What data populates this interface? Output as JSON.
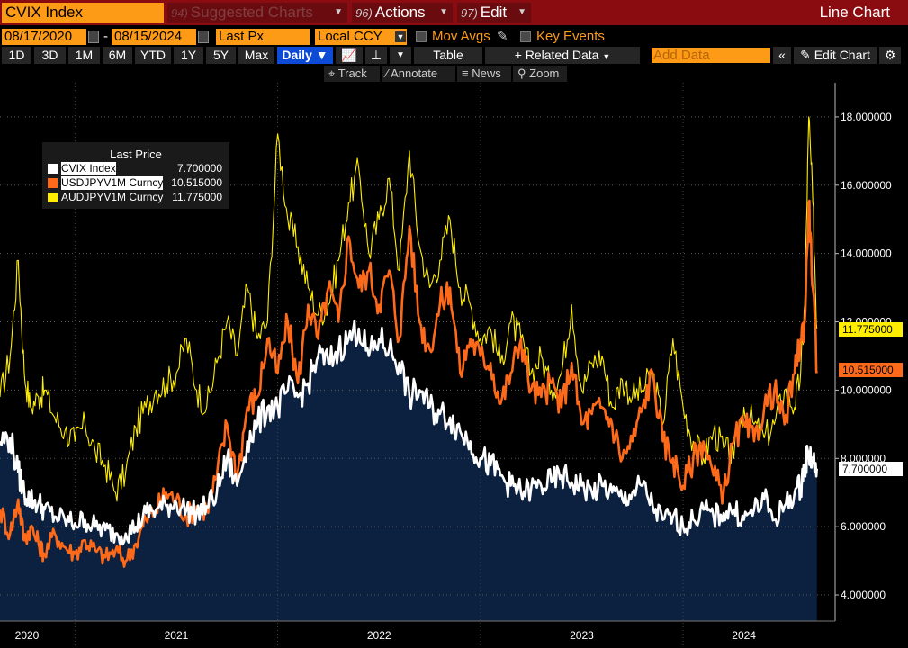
{
  "toolbar": {
    "security": "CVIX Index",
    "suggested": {
      "num": "94)",
      "label": "Suggested Charts"
    },
    "actions": {
      "num": "96)",
      "label": "Actions"
    },
    "edit": {
      "num": "97)",
      "label": "Edit"
    },
    "chart_type": "Line Chart"
  },
  "controls": {
    "start_date": "08/17/2020",
    "end_date": "08/15/2024",
    "date_sep": "-",
    "field": "Last Px",
    "currency": "Local CCY",
    "mov_avgs": "Mov Avgs",
    "key_events": "Key Events",
    "periods": [
      "1D",
      "3D",
      "1M",
      "6M",
      "YTD",
      "1Y",
      "5Y",
      "Max"
    ],
    "frequency": "Daily ▼",
    "table": "Table",
    "related_data": "+ Related Data",
    "add_data_placeholder": "Add Data",
    "edit_chart": "Edit Chart",
    "tools": [
      "Track",
      "Annotate",
      "News",
      "Zoom"
    ]
  },
  "legend": {
    "title": "Last Price",
    "entries": [
      {
        "name": "CVIX Index",
        "value": "7.700000",
        "color": "#ffffff"
      },
      {
        "name": "USDJPYV1M Curncy",
        "value": "10.515000",
        "color": "#ff6a1a"
      },
      {
        "name": "AUDJPYV1M Curncy",
        "value": "11.775000",
        "color": "#ffee00"
      }
    ]
  },
  "last_tags": [
    "11.775000",
    "10.515000",
    "7.700000"
  ],
  "chart_data": {
    "type": "line",
    "y_ticks": [
      "4.000000",
      "6.000000",
      "8.000000",
      "10.000000",
      "12.000000",
      "14.000000",
      "16.000000",
      "18.000000"
    ],
    "ylim": [
      3.5,
      19
    ],
    "x_labels": [
      "2020",
      "2021",
      "2022",
      "2023",
      "2024"
    ],
    "x_label_pos": [
      2020.6,
      2021.5,
      2022.5,
      2023.5,
      2024.3
    ],
    "xlim": [
      2020.63,
      2024.75
    ],
    "year_boundaries": [
      2021.0,
      2022.0,
      2023.0,
      2024.0
    ],
    "grid": true,
    "series": [
      {
        "name": "AUDJPYV1M Curncy",
        "color": "#ffee00",
        "fill": false,
        "x": [
          2020.63,
          2020.68,
          2020.72,
          2020.75,
          2020.78,
          2020.82,
          2020.85,
          2020.9,
          2020.95,
          2021.0,
          2021.05,
          2021.1,
          2021.15,
          2021.2,
          2021.25,
          2021.3,
          2021.35,
          2021.4,
          2021.45,
          2021.5,
          2021.55,
          2021.6,
          2021.65,
          2021.7,
          2021.75,
          2021.8,
          2021.85,
          2021.9,
          2021.95,
          2022.0,
          2022.05,
          2022.1,
          2022.15,
          2022.2,
          2022.25,
          2022.3,
          2022.35,
          2022.4,
          2022.45,
          2022.5,
          2022.55,
          2022.6,
          2022.65,
          2022.7,
          2022.75,
          2022.8,
          2022.85,
          2022.9,
          2022.95,
          2023.0,
          2023.05,
          2023.1,
          2023.15,
          2023.2,
          2023.25,
          2023.3,
          2023.35,
          2023.4,
          2023.45,
          2023.5,
          2023.55,
          2023.6,
          2023.65,
          2023.7,
          2023.75,
          2023.8,
          2023.85,
          2023.9,
          2023.95,
          2024.0,
          2024.05,
          2024.1,
          2024.15,
          2024.2,
          2024.25,
          2024.3,
          2024.35,
          2024.4,
          2024.45,
          2024.5,
          2024.55,
          2024.58,
          2024.6,
          2024.62,
          2024.64,
          2024.66
        ],
        "y": [
          9.8,
          11.0,
          13.8,
          10.5,
          9.5,
          9.8,
          10.0,
          9.2,
          8.8,
          8.5,
          9.0,
          8.2,
          7.8,
          7.0,
          7.6,
          8.9,
          9.5,
          10.0,
          10.2,
          10.5,
          11.5,
          10.0,
          9.5,
          10.8,
          12.0,
          11.0,
          13.0,
          11.5,
          12.0,
          17.5,
          15.0,
          14.2,
          13.0,
          12.2,
          12.5,
          13.8,
          15.5,
          16.5,
          14.0,
          15.0,
          16.2,
          13.5,
          17.0,
          14.2,
          13.0,
          13.8,
          15.0,
          13.0,
          12.5,
          11.5,
          11.8,
          10.8,
          12.0,
          11.5,
          10.5,
          11.0,
          10.0,
          10.5,
          12.5,
          10.0,
          10.8,
          11.0,
          9.5,
          10.3,
          9.8,
          10.0,
          10.5,
          9.0,
          11.5,
          9.5,
          8.5,
          8.0,
          8.8,
          8.3,
          8.0,
          9.5,
          9.0,
          8.6,
          9.0,
          10.0,
          9.5,
          10.5,
          12.5,
          18.0,
          15.5,
          11.8
        ]
      },
      {
        "name": "USDJPYV1M Curncy",
        "color": "#ff6a1a",
        "fill": false,
        "x": [
          2020.63,
          2020.68,
          2020.72,
          2020.75,
          2020.78,
          2020.82,
          2020.85,
          2020.9,
          2020.95,
          2021.0,
          2021.05,
          2021.1,
          2021.15,
          2021.2,
          2021.25,
          2021.3,
          2021.35,
          2021.4,
          2021.45,
          2021.5,
          2021.55,
          2021.6,
          2021.65,
          2021.7,
          2021.75,
          2021.8,
          2021.85,
          2021.9,
          2021.95,
          2022.0,
          2022.05,
          2022.1,
          2022.15,
          2022.2,
          2022.25,
          2022.3,
          2022.35,
          2022.4,
          2022.45,
          2022.5,
          2022.55,
          2022.6,
          2022.65,
          2022.7,
          2022.75,
          2022.8,
          2022.85,
          2022.9,
          2022.95,
          2023.0,
          2023.05,
          2023.1,
          2023.15,
          2023.2,
          2023.25,
          2023.3,
          2023.35,
          2023.4,
          2023.45,
          2023.5,
          2023.55,
          2023.6,
          2023.65,
          2023.7,
          2023.75,
          2023.8,
          2023.85,
          2023.9,
          2023.95,
          2024.0,
          2024.05,
          2024.1,
          2024.15,
          2024.2,
          2024.25,
          2024.3,
          2024.35,
          2024.4,
          2024.45,
          2024.5,
          2024.55,
          2024.58,
          2024.6,
          2024.62,
          2024.64,
          2024.66
        ],
        "y": [
          6.5,
          5.8,
          6.8,
          5.6,
          6.0,
          5.5,
          5.2,
          5.8,
          5.4,
          5.2,
          5.6,
          5.3,
          5.1,
          5.3,
          5.0,
          5.5,
          6.2,
          6.5,
          7.0,
          6.8,
          6.3,
          6.6,
          6.5,
          7.5,
          9.0,
          7.5,
          9.5,
          9.8,
          11.5,
          10.5,
          12.0,
          10.2,
          12.5,
          11.5,
          13.0,
          12.0,
          14.5,
          13.0,
          13.5,
          12.5,
          13.5,
          11.5,
          14.8,
          12.0,
          11.2,
          12.5,
          13.0,
          10.5,
          11.5,
          11.0,
          10.8,
          9.6,
          10.5,
          11.5,
          10.0,
          9.8,
          10.2,
          9.5,
          10.8,
          9.0,
          9.3,
          9.5,
          9.0,
          8.0,
          8.5,
          9.5,
          10.5,
          8.5,
          8.0,
          7.2,
          8.0,
          8.5,
          7.5,
          7.0,
          8.5,
          9.0,
          8.5,
          9.5,
          10.0,
          9.0,
          10.5,
          11.5,
          12.0,
          15.5,
          13.0,
          10.5
        ]
      },
      {
        "name": "CVIX Index",
        "color": "#ffffff",
        "fill": true,
        "fill_color": "#0c213f",
        "x": [
          2020.63,
          2020.68,
          2020.72,
          2020.75,
          2020.78,
          2020.82,
          2020.85,
          2020.9,
          2020.95,
          2021.0,
          2021.05,
          2021.1,
          2021.15,
          2021.2,
          2021.25,
          2021.3,
          2021.35,
          2021.4,
          2021.45,
          2021.5,
          2021.55,
          2021.6,
          2021.65,
          2021.7,
          2021.75,
          2021.8,
          2021.85,
          2021.9,
          2021.95,
          2022.0,
          2022.05,
          2022.1,
          2022.15,
          2022.2,
          2022.25,
          2022.3,
          2022.35,
          2022.4,
          2022.45,
          2022.5,
          2022.55,
          2022.6,
          2022.65,
          2022.7,
          2022.75,
          2022.8,
          2022.85,
          2022.9,
          2022.95,
          2023.0,
          2023.05,
          2023.1,
          2023.15,
          2023.2,
          2023.25,
          2023.3,
          2023.35,
          2023.4,
          2023.45,
          2023.5,
          2023.55,
          2023.6,
          2023.65,
          2023.7,
          2023.75,
          2023.8,
          2023.85,
          2023.9,
          2023.95,
          2024.0,
          2024.05,
          2024.1,
          2024.15,
          2024.2,
          2024.25,
          2024.3,
          2024.35,
          2024.4,
          2024.45,
          2024.5,
          2024.55,
          2024.58,
          2024.6,
          2024.62,
          2024.64,
          2024.66
        ],
        "y": [
          8.5,
          8.6,
          7.6,
          7.0,
          6.8,
          6.7,
          6.5,
          6.3,
          6.2,
          6.1,
          6.2,
          6.0,
          5.9,
          5.8,
          5.8,
          6.0,
          6.4,
          6.5,
          6.6,
          6.7,
          6.5,
          6.4,
          6.6,
          7.0,
          8.0,
          7.2,
          8.5,
          9.0,
          9.5,
          9.5,
          10.0,
          9.8,
          10.2,
          11.0,
          10.8,
          11.2,
          11.5,
          11.8,
          11.0,
          11.5,
          11.2,
          10.8,
          9.8,
          10.0,
          9.5,
          9.3,
          9.2,
          8.8,
          8.5,
          8.0,
          7.8,
          7.5,
          7.2,
          7.0,
          7.1,
          7.2,
          7.3,
          7.5,
          7.3,
          7.2,
          7.0,
          7.2,
          7.0,
          6.8,
          7.0,
          7.2,
          6.6,
          6.2,
          6.3,
          6.0,
          6.2,
          6.5,
          6.3,
          6.4,
          6.5,
          6.2,
          6.5,
          6.8,
          6.2,
          6.6,
          7.0,
          7.2,
          7.8,
          8.2,
          7.9,
          7.7
        ]
      }
    ]
  }
}
